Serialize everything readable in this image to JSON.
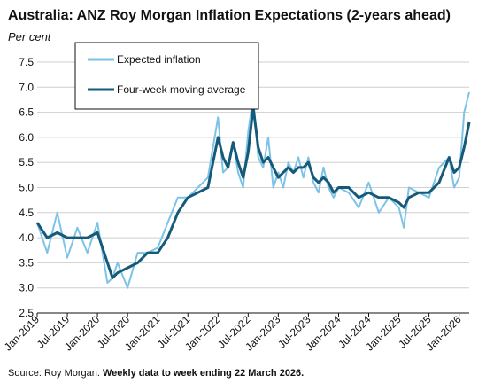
{
  "chart_data": {
    "type": "line",
    "title": "Australia: ANZ Roy Morgan Inflation Expectations (2-years ahead)",
    "ylabel": "Per cent",
    "xlabel": "",
    "ylim": [
      2.5,
      7.5
    ],
    "y_ticks": [
      "2.5",
      "3.0",
      "3.5",
      "4.0",
      "4.5",
      "5.0",
      "5.5",
      "6.0",
      "6.5",
      "7.0",
      "7.5"
    ],
    "x_ticks": [
      "Jan-2019",
      "Jul-2019",
      "Jan-2020",
      "Jul-2020",
      "Jan-2021",
      "Jul-2021",
      "Jan-2022",
      "Jul-2022",
      "Jan-2023",
      "Jul-2023",
      "Jan-2024",
      "Jul-2024",
      "Jan-2025",
      "Jul-2025",
      "Jan-2026"
    ],
    "grid": "horizontal",
    "legend_position": "top-left",
    "series": [
      {
        "name": "Expected inflation",
        "color": "#7cc3e6",
        "x": [
          "2019-01",
          "2019-03",
          "2019-05",
          "2019-07",
          "2019-09",
          "2019-11",
          "2020-01",
          "2020-03",
          "2020-04",
          "2020-05",
          "2020-07",
          "2020-09",
          "2020-11",
          "2021-01",
          "2021-03",
          "2021-05",
          "2021-07",
          "2021-09",
          "2021-11",
          "2022-01",
          "2022-02",
          "2022-03",
          "2022-04",
          "2022-05",
          "2022-06",
          "2022-07",
          "2022-08",
          "2022-09",
          "2022-10",
          "2022-11",
          "2022-12",
          "2023-01",
          "2023-02",
          "2023-03",
          "2023-04",
          "2023-05",
          "2023-06",
          "2023-07",
          "2023-08",
          "2023-09",
          "2023-10",
          "2023-11",
          "2023-12",
          "2024-01",
          "2024-03",
          "2024-05",
          "2024-07",
          "2024-09",
          "2024-11",
          "2025-01",
          "2025-02",
          "2025-03",
          "2025-05",
          "2025-07",
          "2025-09",
          "2025-11",
          "2025-12",
          "2026-01",
          "2026-02",
          "2026-03"
        ],
        "values": [
          4.3,
          3.7,
          4.5,
          3.6,
          4.2,
          3.7,
          4.3,
          3.1,
          3.2,
          3.5,
          3.0,
          3.7,
          3.7,
          3.8,
          4.3,
          4.8,
          4.8,
          5.0,
          5.2,
          6.4,
          5.3,
          5.4,
          5.9,
          5.3,
          5.0,
          6.1,
          6.8,
          5.6,
          5.4,
          6.0,
          5.0,
          5.3,
          5.0,
          5.5,
          5.3,
          5.6,
          5.2,
          5.6,
          5.1,
          4.9,
          5.4,
          5.0,
          4.8,
          5.0,
          4.9,
          4.6,
          5.1,
          4.5,
          4.8,
          4.6,
          4.2,
          5.0,
          4.9,
          4.8,
          5.4,
          5.6,
          5.0,
          5.2,
          6.5,
          6.9
        ]
      },
      {
        "name": "Four-week moving average",
        "color": "#165a7a",
        "x": [
          "2019-01",
          "2019-03",
          "2019-05",
          "2019-07",
          "2019-09",
          "2019-11",
          "2020-01",
          "2020-03",
          "2020-04",
          "2020-05",
          "2020-07",
          "2020-09",
          "2020-11",
          "2021-01",
          "2021-03",
          "2021-05",
          "2021-07",
          "2021-09",
          "2021-11",
          "2022-01",
          "2022-02",
          "2022-03",
          "2022-04",
          "2022-05",
          "2022-06",
          "2022-07",
          "2022-08",
          "2022-09",
          "2022-10",
          "2022-11",
          "2022-12",
          "2023-01",
          "2023-02",
          "2023-03",
          "2023-04",
          "2023-05",
          "2023-06",
          "2023-07",
          "2023-08",
          "2023-09",
          "2023-10",
          "2023-11",
          "2023-12",
          "2024-01",
          "2024-03",
          "2024-05",
          "2024-07",
          "2024-09",
          "2024-11",
          "2025-01",
          "2025-02",
          "2025-03",
          "2025-05",
          "2025-07",
          "2025-09",
          "2025-11",
          "2025-12",
          "2026-01",
          "2026-02",
          "2026-03"
        ],
        "values": [
          4.3,
          4.0,
          4.1,
          4.0,
          4.0,
          4.0,
          4.1,
          3.5,
          3.2,
          3.3,
          3.4,
          3.5,
          3.7,
          3.7,
          4.0,
          4.5,
          4.8,
          4.9,
          5.0,
          6.0,
          5.6,
          5.4,
          5.9,
          5.5,
          5.2,
          5.7,
          6.6,
          5.8,
          5.5,
          5.6,
          5.4,
          5.2,
          5.3,
          5.4,
          5.3,
          5.4,
          5.4,
          5.5,
          5.2,
          5.1,
          5.2,
          5.1,
          4.9,
          5.0,
          5.0,
          4.8,
          4.9,
          4.8,
          4.8,
          4.7,
          4.6,
          4.8,
          4.9,
          4.9,
          5.1,
          5.6,
          5.3,
          5.4,
          5.8,
          6.3
        ]
      }
    ],
    "source_prefix": "Source: Roy Morgan. ",
    "source_bold": "Weekly data to week ending 22 March 2026."
  }
}
